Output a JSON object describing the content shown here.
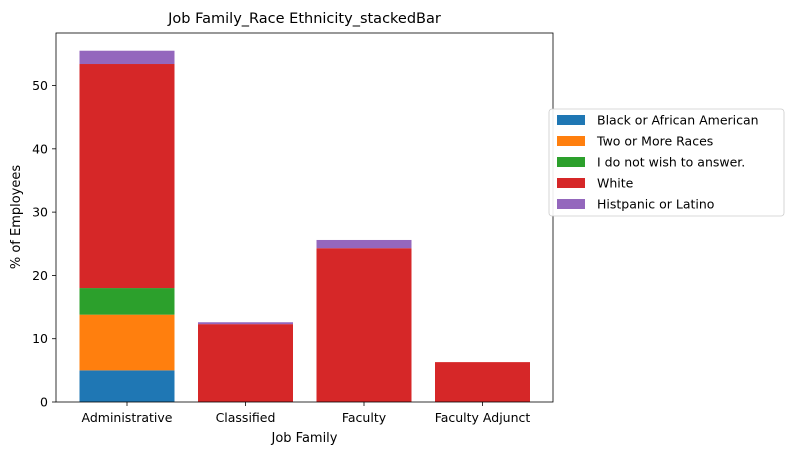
{
  "chart_data": {
    "type": "bar",
    "stacked": true,
    "title": "Job Family_Race Ethnicity_stackedBar",
    "xlabel": "Job Family",
    "ylabel": "% of Employees",
    "categories": [
      "Administrative",
      "Classified",
      "Faculty",
      "Faculty Adjunct"
    ],
    "ylim": [
      0,
      58.3
    ],
    "yticks": [
      0,
      10,
      20,
      30,
      40,
      50
    ],
    "grid": false,
    "legend_position": "right",
    "series": [
      {
        "name": "Black or African American",
        "color": "#1f77b4",
        "values": [
          5.0,
          0,
          0,
          0
        ]
      },
      {
        "name": "Two or More Races",
        "color": "#ff7f0e",
        "values": [
          8.8,
          0,
          0,
          0
        ]
      },
      {
        "name": "I do not wish to answer.",
        "color": "#2ca02c",
        "values": [
          4.2,
          0,
          0,
          0
        ]
      },
      {
        "name": "White",
        "color": "#d62728",
        "values": [
          35.4,
          12.3,
          24.3,
          6.3
        ]
      },
      {
        "name": "Histpanic or Latino",
        "color": "#9467bd",
        "values": [
          2.1,
          0.3,
          1.3,
          0
        ]
      }
    ]
  }
}
